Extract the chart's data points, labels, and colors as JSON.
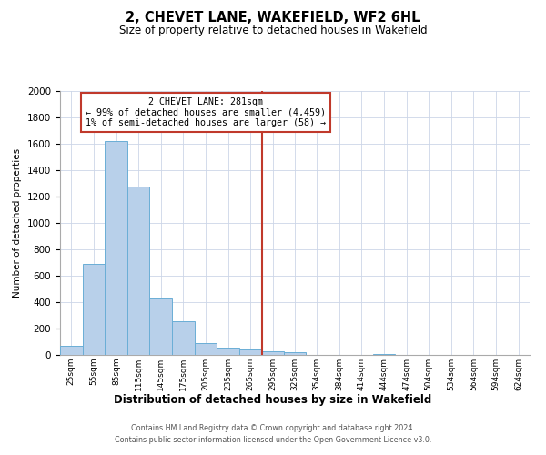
{
  "title": "2, CHEVET LANE, WAKEFIELD, WF2 6HL",
  "subtitle": "Size of property relative to detached houses in Wakefield",
  "xlabel": "Distribution of detached houses by size in Wakefield",
  "ylabel": "Number of detached properties",
  "bin_labels": [
    "25sqm",
    "55sqm",
    "85sqm",
    "115sqm",
    "145sqm",
    "175sqm",
    "205sqm",
    "235sqm",
    "265sqm",
    "295sqm",
    "325sqm",
    "354sqm",
    "384sqm",
    "414sqm",
    "444sqm",
    "474sqm",
    "504sqm",
    "534sqm",
    "564sqm",
    "594sqm",
    "624sqm"
  ],
  "bin_edges": [
    10,
    40,
    70,
    100,
    130,
    160,
    190,
    220,
    250,
    280,
    310,
    339,
    369,
    399,
    429,
    459,
    489,
    519,
    549,
    579,
    609,
    639
  ],
  "bar_heights": [
    70,
    690,
    1620,
    1275,
    430,
    255,
    90,
    55,
    40,
    25,
    20,
    0,
    0,
    0,
    10,
    0,
    0,
    0,
    0,
    0,
    0
  ],
  "bar_color": "#b8d0ea",
  "bar_edge_color": "#6aaed6",
  "vline_x": 281,
  "vline_color": "#c0392b",
  "annotation_title": "2 CHEVET LANE: 281sqm",
  "annotation_line1": "← 99% of detached houses are smaller (4,459)",
  "annotation_line2": "1% of semi-detached houses are larger (58) →",
  "annotation_box_color": "#c0392b",
  "ylim": [
    0,
    2000
  ],
  "yticks": [
    0,
    200,
    400,
    600,
    800,
    1000,
    1200,
    1400,
    1600,
    1800,
    2000
  ],
  "footer_line1": "Contains HM Land Registry data © Crown copyright and database right 2024.",
  "footer_line2": "Contains public sector information licensed under the Open Government Licence v3.0.",
  "bg_color": "#ffffff",
  "grid_color": "#ccd6e8"
}
